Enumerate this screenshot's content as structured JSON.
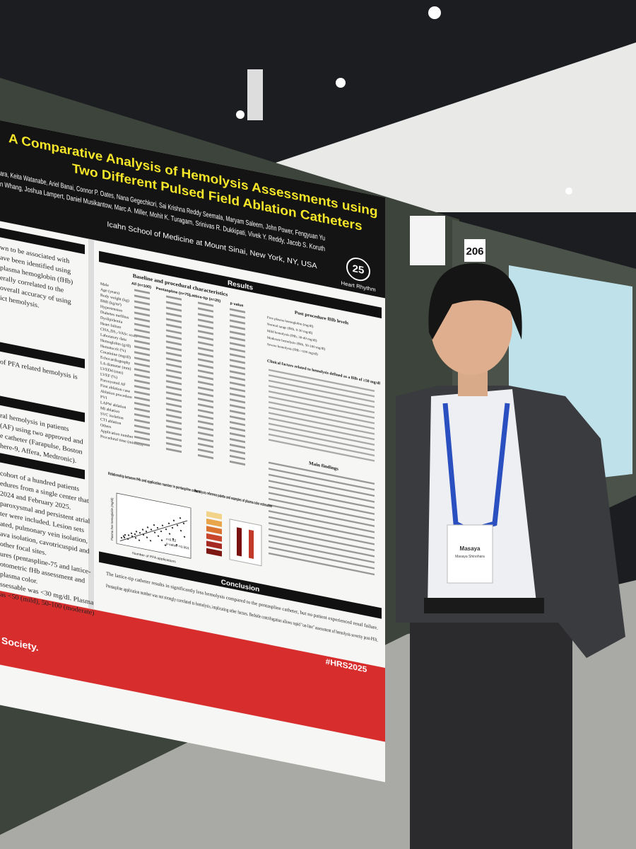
{
  "poster": {
    "title": [
      "A Comparative Analysis of Hemolysis Assessments using",
      "Two Different Pulsed Field Ablation Catheters"
    ],
    "authors": [
      "ara, Keita Watanabe, Ariel Banai, Connor P. Oates, Nana Gegechkori, Sai Krishna Reddy Seemala, Maryam Saleem, John Power, Fengyuan Yu",
      "n Whang, Joshua Lampert, Daniel Musikantow, Marc A. Miller, Mohit K. Turagam, Srinivas R. Dukkipati, Vivek Y. Reddy, Jacob S. Koruth"
    ],
    "institution": "Icahn School of Medicine at Mount Sinai, New York, NY, USA",
    "logo_number": "25",
    "logo_text": "Heart Rhythm",
    "intro_lines": [
      "wn to be associated with",
      "ave been identified using",
      "plasma hemoglobin (fHb)",
      "erally correlated to the",
      "overall accuracy of using",
      "ict hemolysis."
    ],
    "aims_lines": [
      "of PFA related hemolysis is"
    ],
    "methods_lines": [
      "ral hemolysis in patients",
      "(AF) using two approved and",
      "e catheter (Farapulse, Boston",
      "here-9, Affera, Medtronic)."
    ],
    "cohort_lines": [
      "cohort of a hundred patients",
      "edures from a single center that",
      "2024 and February 2025.",
      "paroxysmal and persistent atrial",
      "ter were included. Lesion sets",
      "ated, pulmonary vein isolation,",
      "ava isolation, cavotricuspid and",
      "other focal sites.",
      "ures (pentaspline-75 and lattice-",
      "otometric fHb assessment and",
      "plasma color.",
      "ssessable was <30 mg/dl. Plasma",
      "as <50 (mild), 50-100 (moderate)"
    ],
    "results": {
      "heading": "Results",
      "baseline_title": "Baseline and procedural characteristics",
      "columns": [
        "All (n=100)",
        "Pentaspline (n=75)",
        "Lattice-tip (n=25)",
        "p value"
      ],
      "rows": [
        "Male",
        "Age (years)",
        "Body weight (kg)",
        "BMI (kg/m²)",
        "Hypertension",
        "Diabetes mellitus",
        "Dyslipidemia",
        "Heart failure",
        "CHA₂DS₂-VASc score",
        "Laboratory data",
        "Hemoglobin (g/dl)",
        "Hematocrit (%)",
        "Creatinine (mg/dl)",
        "Echocardiography",
        "LA diameter (mm)",
        "LVEDd (mm)",
        "LVEF (%)",
        "Paroxysmal AF",
        "First ablation case",
        "Ablation procedure",
        "PVI",
        "LAPW ablation",
        "MI ablation",
        "SVC isolation",
        "CTI ablation",
        "Others",
        "Application number",
        "Procedural time (minutes)"
      ],
      "post_title": "Post procedure fHb levels",
      "post_rows": [
        "Free plasma hemoglobin (mg/dl)",
        "Normal range (fHb, 0-30 mg/dl)",
        "Mild hemolysis (fHb, 30-49 mg/dl)",
        "Moderate hemolysis (fHb, 50-100 mg/dl)",
        "Severe hemolysis (fHb >100 mg/dl)"
      ],
      "clinical_title": "Clinical factors related to hemolysis defined as a fHb of ≥50 mg/dl",
      "main_findings": "Main findings",
      "scatter_title": "Relationship between fHb and application number in pentaspline cohort",
      "scatter_x": "Number of PFA applications",
      "scatter_y": "Plasma free hemoglobin (mg/dl)",
      "scatter_stat": [
        "r=0.42",
        "p value <0.001"
      ],
      "palette_title": "Hemolysis reference palette and examples of plasma color estimation"
    },
    "conclusion": {
      "heading": "Conclusion",
      "points": [
        "The lattice-tip catheter results in significantly less hemolysis compared to the pentaspline catheter, but no patient experienced renal failure.",
        "Pentaspline application number was not strongly correlated to hemolysis, implicating other factors. Bedside centrifugation allows rapid \"on-line\" assessment of hemolysis severity post-PFA."
      ]
    },
    "hashtag": "#HRS2025",
    "society": "Society."
  },
  "booth_number": "206",
  "badge": {
    "name": "Masaya",
    "full_name": "Masaya Shinohara"
  }
}
